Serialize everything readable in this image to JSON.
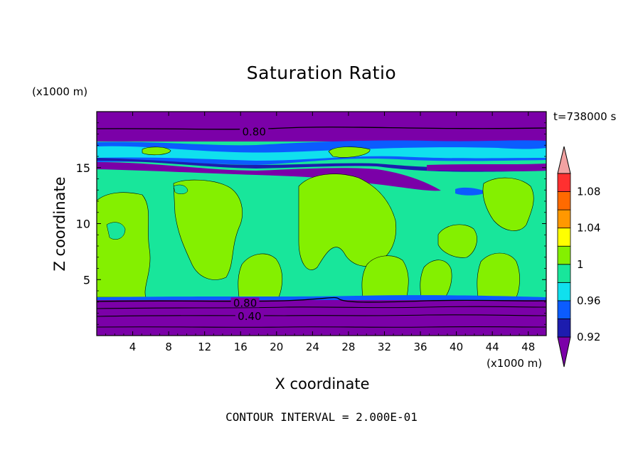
{
  "chart_data": {
    "type": "heatmap",
    "title": "Saturation Ratio",
    "xlabel": "X coordinate",
    "ylabel": "Z coordinate",
    "x_units": "(x1000 m)",
    "y_units": "(x1000 m)",
    "time_label": "t=738000 s",
    "footer": "CONTOUR INTERVAL = 2.000E-01",
    "xlim": [
      0,
      50
    ],
    "ylim": [
      0,
      20
    ],
    "x_ticks": [
      4,
      8,
      12,
      16,
      20,
      24,
      28,
      32,
      36,
      40,
      44,
      48
    ],
    "y_ticks": [
      5,
      10,
      15
    ],
    "contour_labels": [
      {
        "text": "0.80",
        "x": 17.5,
        "y": 18.2
      },
      {
        "text": "0.80",
        "x": 16.5,
        "y": 2.9
      },
      {
        "text": "0.40",
        "x": 17.0,
        "y": 1.7
      }
    ],
    "colorbar": {
      "labels": [
        "1.08",
        "1.04",
        "1",
        "0.96",
        "0.92"
      ],
      "colors": [
        "#7b00a8",
        "#1c1cae",
        "#0b5cff",
        "#10e0ee",
        "#18e69b",
        "#84f000",
        "#ffff00",
        "#ff9800",
        "#ff6a00",
        "#ff3030",
        "#f2a2a2"
      ]
    }
  }
}
